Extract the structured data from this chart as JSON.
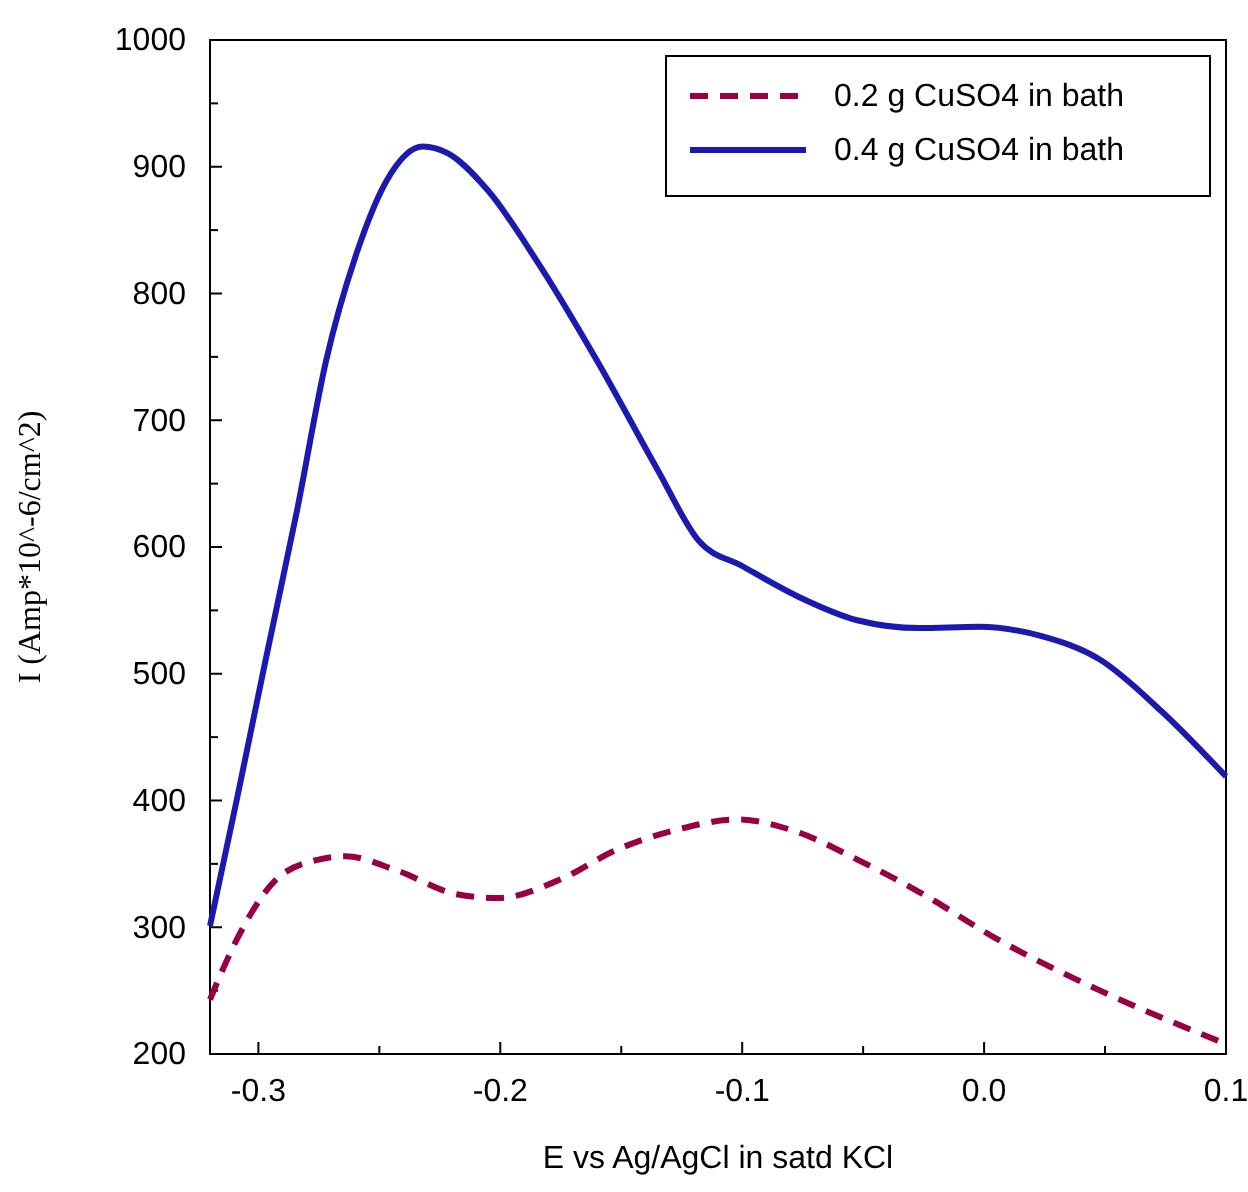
{
  "chart_data": {
    "type": "line",
    "xlabel": "E vs Ag/AgCl in satd KCl",
    "ylabel": "I (Amp*10^-6/cm^2)",
    "xlim": [
      -0.32,
      0.1
    ],
    "xticks": [
      {
        "value": -0.3,
        "label": "-0.3"
      },
      {
        "value": -0.25,
        "label": null
      },
      {
        "value": -0.2,
        "label": "-0.2"
      },
      {
        "value": -0.15,
        "label": null
      },
      {
        "value": -0.1,
        "label": "-0.1"
      },
      {
        "value": -0.05,
        "label": null
      },
      {
        "value": 0,
        "label": "0.0"
      },
      {
        "value": 0.05,
        "label": null
      },
      {
        "value": 0.1,
        "label": "0.1"
      }
    ],
    "ylim": [
      200,
      1000
    ],
    "yticks": [
      200,
      {
        "value": 250,
        "label": null
      },
      300,
      {
        "value": 350,
        "label": null
      },
      400,
      {
        "value": 450,
        "label": null
      },
      500,
      {
        "value": 550,
        "label": null
      },
      600,
      {
        "value": 650,
        "label": null
      },
      700,
      {
        "value": 750,
        "label": null
      },
      800,
      {
        "value": 850,
        "label": null
      },
      900,
      {
        "value": 950,
        "label": null
      },
      1000
    ],
    "grid": false,
    "legend": "top right",
    "marker": "none",
    "series": [
      {
        "name": "0.2 g CuSO4 in bath",
        "color": "#990044",
        "line_style": "dashed",
        "x": [
          -0.32,
          -0.309,
          -0.293,
          -0.276,
          -0.264,
          -0.243,
          -0.218,
          -0.201,
          -0.176,
          -0.152,
          -0.127,
          -0.102,
          -0.077,
          -0.052,
          -0.027,
          0.006,
          0.048,
          0.1
        ],
        "values": [
          243,
          290,
          337,
          353,
          356,
          345,
          326,
          323,
          337,
          361,
          377,
          385,
          375,
          353,
          328,
          290,
          250,
          208
        ]
      },
      {
        "name": "0.4 g CuSO4 in bath",
        "color": "#1a1ab0",
        "line_style": "solid",
        "x": [
          -0.32,
          -0.309,
          -0.297,
          -0.284,
          -0.272,
          -0.259,
          -0.247,
          -0.232,
          -0.222,
          -0.205,
          -0.185,
          -0.16,
          -0.135,
          -0.118,
          -0.1,
          -0.077,
          -0.052,
          -0.027,
          -0.002,
          0.023,
          0.048,
          0.073,
          0.1
        ],
        "values": [
          301,
          400,
          511,
          629,
          747,
          834,
          889,
          916,
          911,
          881,
          826,
          747,
          661,
          605,
          585,
          561,
          542,
          536,
          537,
          530,
          511,
          471,
          419
        ]
      }
    ]
  }
}
